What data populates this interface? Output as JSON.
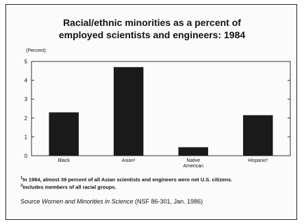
{
  "chart_data": {
    "type": "bar",
    "title_line1": "Racial/ethnic minorities as a percent of",
    "title_line2": "employed scientists and engineers: 1984",
    "ylabel": "(Percent)",
    "ylim": [
      0,
      5
    ],
    "yticks": [
      0,
      1,
      2,
      3,
      4,
      5
    ],
    "categories": [
      "Black",
      "Asian¹",
      "Native American",
      "Hispanic²"
    ],
    "values": [
      2.3,
      4.7,
      0.45,
      2.15
    ],
    "bar_color": "#1a1a1a",
    "grid": false
  },
  "footnotes": {
    "fn1_mark": "1",
    "fn1_text": "In 1984, almost 39 percent of all Asian scientists and engineers were not U.S. citizens.",
    "fn2_mark": "2",
    "fn2_text": "Includes members of all racial groups."
  },
  "source": {
    "prefix": "Source",
    "italic": "Women and Minorities in Science",
    "suffix": "(NSF 86-301, Jan. 1986)"
  }
}
